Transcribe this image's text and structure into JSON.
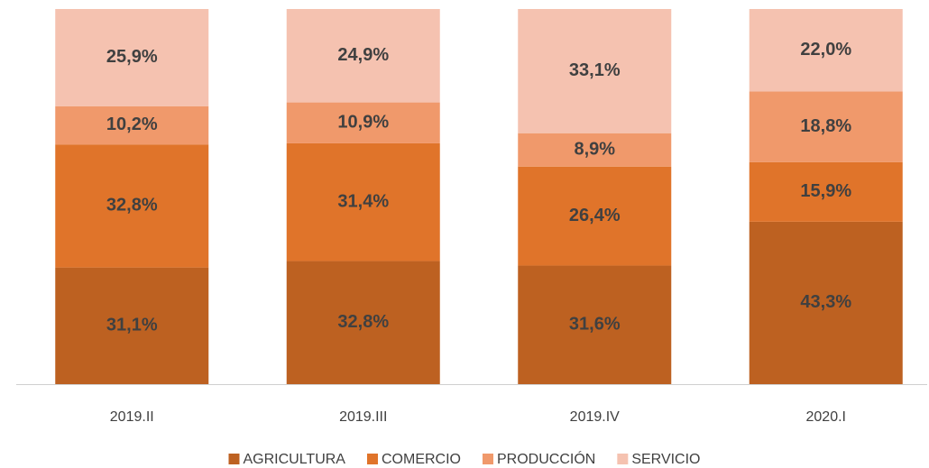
{
  "chart_data": {
    "type": "stacked_bar",
    "categories": [
      "2019.II",
      "2019.III",
      "2019.IV",
      "2020.I"
    ],
    "series": [
      {
        "name": "AGRICULTURA",
        "color": "#bd6121",
        "values": [
          31.1,
          32.8,
          31.6,
          43.3
        ],
        "value_labels": [
          "31,1%",
          "32,8%",
          "31,6%",
          "43,3%"
        ]
      },
      {
        "name": "COMERCIO",
        "color": "#e0742a",
        "values": [
          32.8,
          31.4,
          26.4,
          15.9
        ],
        "value_labels": [
          "32,8%",
          "31,4%",
          "26,4%",
          "15,9%"
        ]
      },
      {
        "name": "PRODUCCIÓN",
        "color": "#f0996b",
        "values": [
          10.2,
          10.9,
          8.9,
          18.8
        ],
        "value_labels": [
          "10,2%",
          "10,9%",
          "8,9%",
          "18,8%"
        ]
      },
      {
        "name": "SERVICIO",
        "color": "#f5c2b0",
        "values": [
          25.9,
          24.9,
          33.1,
          22.0
        ],
        "value_labels": [
          "25,9%",
          "24,9%",
          "33,1%",
          "22,0%"
        ]
      }
    ],
    "legend": "bottom"
  }
}
